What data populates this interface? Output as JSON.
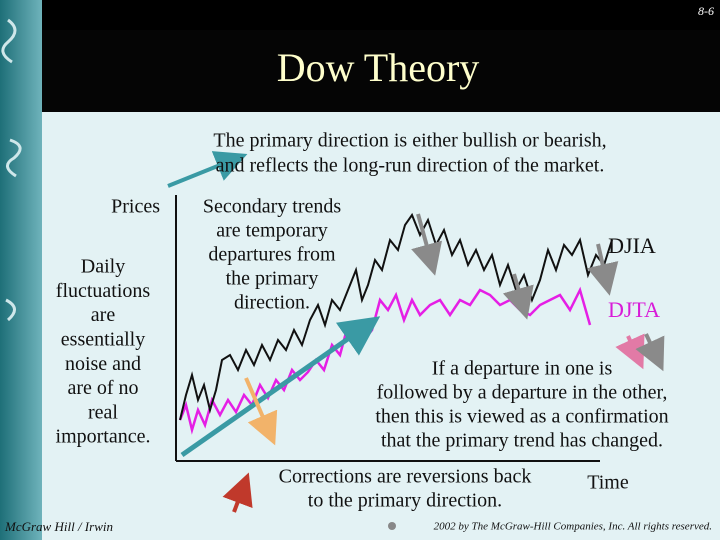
{
  "slide_number": "8-6",
  "title": "Dow Theory",
  "intro": [
    "The primary direction is either bullish or bearish,",
    "and reflects the long-run direction of the market."
  ],
  "axis": {
    "y_label": "Prices",
    "x_label": "Time"
  },
  "daily_note": [
    "Daily",
    "fluctuations",
    "are",
    "essentially",
    "noise and",
    "are of no",
    "real",
    "importance."
  ],
  "secondary_note": [
    "Secondary trends",
    "are temporary",
    "departures from",
    "the primary",
    "direction."
  ],
  "series": {
    "djia": "DJIA",
    "djta": "DJTA"
  },
  "confirmation_note": [
    "If a departure in one is",
    "followed by a departure in the other,",
    "then this is viewed as a confirmation",
    "that the primary trend has changed."
  ],
  "corrections_note": [
    "Corrections are reversions back",
    "to the primary direction."
  ],
  "footer": {
    "publisher": "McGraw Hill / Irwin",
    "copyright": "2002 by The McGraw-Hill Companies, Inc. All rights reserved."
  }
}
